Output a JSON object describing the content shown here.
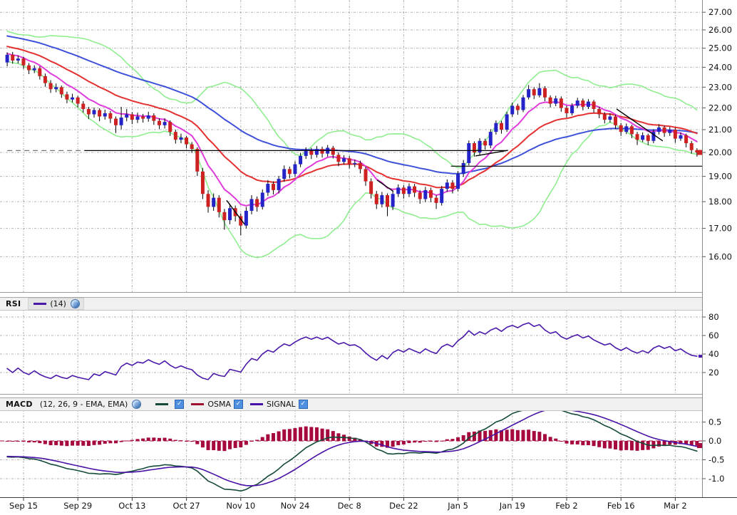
{
  "price_panel": {
    "y_tick_labels": [
      "27.00",
      "26.00",
      "25.00",
      "24.00",
      "23.00",
      "22.00",
      "21.00",
      "20.00",
      "19.00",
      "18.00",
      "17.00",
      "16.00"
    ],
    "x_tick_labels": [
      "Sep 15",
      "Sep 29",
      "Oct 13",
      "Oct 27",
      "Nov 10",
      "Nov 24",
      "Dec 8",
      "Dec 22",
      "Jan 5",
      "Jan 19",
      "Feb 2",
      "Feb 16",
      "Mar 2"
    ]
  },
  "rsi_panel": {
    "title": "RSI",
    "params": "(14)",
    "y_tick_labels": [
      "80",
      "60",
      "40",
      "20"
    ]
  },
  "macd_panel": {
    "title": "MACD",
    "params": "(12, 26, 9 - EMA, EMA)",
    "legend": [
      {
        "label": "",
        "color": "#14493C",
        "checked": "✓"
      },
      {
        "label": "OSMA",
        "color": "#A01030",
        "checked": "✓"
      },
      {
        "label": "SIGNAL",
        "color": "#4911A5",
        "checked": "✓"
      }
    ],
    "y_tick_labels": [
      "0.5",
      "0.0",
      "-0.5",
      "-1.0"
    ]
  },
  "colors": {
    "candle_up": "#2323C8",
    "candle_down": "#CE2121",
    "wick": "#000000",
    "bollinger": "#90EE90",
    "ema_fast": "#E03CDC",
    "ema_mid": "#E43030",
    "ema_slow": "#3F51D9",
    "rsi_line": "#4A18A8",
    "macd_line": "#14493C",
    "signal_line": "#4911A5",
    "osma_hist": "#A5093E",
    "grid": "#b2b2b2",
    "annotation": "#000000",
    "header_bg": "#f0f0f0"
  },
  "chart_data": [
    {
      "type": "candlestick",
      "title": "",
      "yscale": "log",
      "ylim": [
        15.6,
        27.3
      ],
      "yticks": [
        27,
        26,
        25,
        24,
        23,
        22,
        21,
        20,
        19,
        18,
        17,
        16
      ],
      "x_tick_step": 10,
      "first_tick_candle_index": 3,
      "x_tick_labels": [
        "Sep 15",
        "Sep 29",
        "Oct 13",
        "Oct 27",
        "Nov 10",
        "Nov 24",
        "Dec 8",
        "Dec 22",
        "Jan 5",
        "Jan 19",
        "Feb 2",
        "Feb 16",
        "Mar 2"
      ],
      "overlays": [
        {
          "name": "bollinger-bands",
          "period": 20,
          "stddev": 2,
          "color": "#90EE90"
        },
        {
          "name": "ema-fast",
          "period": 8,
          "color": "#E03CDC"
        },
        {
          "name": "ema-mid",
          "period": 20,
          "color": "#E43030"
        },
        {
          "name": "ema-slow",
          "period": 45,
          "color": "#3F51D9"
        }
      ],
      "candles": [
        [
          24.25,
          24.78,
          24.05,
          24.65
        ],
        [
          24.65,
          24.8,
          24.18,
          24.35
        ],
        [
          24.35,
          24.62,
          24.2,
          24.45
        ],
        [
          24.45,
          24.55,
          23.92,
          24.1
        ],
        [
          24.1,
          24.22,
          23.65,
          23.85
        ],
        [
          23.85,
          24.1,
          23.7,
          23.95
        ],
        [
          23.95,
          24.05,
          23.38,
          23.55
        ],
        [
          23.55,
          23.68,
          23.02,
          23.2
        ],
        [
          23.2,
          23.35,
          22.72,
          22.9
        ],
        [
          22.9,
          23.18,
          22.75,
          23.0
        ],
        [
          23.0,
          23.08,
          22.48,
          22.65
        ],
        [
          22.65,
          22.78,
          22.22,
          22.4
        ],
        [
          22.4,
          22.68,
          22.26,
          22.5
        ],
        [
          22.5,
          22.58,
          22.02,
          22.2
        ],
        [
          22.2,
          22.32,
          21.78,
          21.95
        ],
        [
          21.95,
          22.05,
          21.48,
          21.7
        ],
        [
          21.7,
          22.02,
          21.55,
          21.9
        ],
        [
          21.9,
          21.98,
          21.38,
          21.6
        ],
        [
          21.6,
          21.92,
          21.45,
          21.75
        ],
        [
          21.75,
          21.85,
          21.3,
          21.5
        ],
        [
          21.5,
          21.6,
          20.85,
          21.2
        ],
        [
          21.2,
          22.05,
          21.02,
          21.55
        ],
        [
          21.55,
          21.95,
          21.38,
          21.7
        ],
        [
          21.7,
          21.8,
          21.25,
          21.45
        ],
        [
          21.45,
          21.78,
          21.3,
          21.6
        ],
        [
          21.6,
          21.72,
          21.32,
          21.5
        ],
        [
          21.5,
          21.82,
          21.36,
          21.65
        ],
        [
          21.65,
          21.75,
          21.22,
          21.4
        ],
        [
          21.4,
          21.52,
          21.02,
          21.2
        ],
        [
          21.2,
          21.52,
          21.05,
          21.35
        ],
        [
          21.35,
          21.42,
          20.72,
          20.9
        ],
        [
          20.9,
          21.0,
          20.38,
          20.55
        ],
        [
          20.55,
          20.82,
          20.4,
          20.65
        ],
        [
          20.65,
          20.72,
          20.18,
          20.35
        ],
        [
          20.35,
          20.45,
          19.98,
          20.15
        ],
        [
          20.15,
          20.22,
          19.02,
          19.2
        ],
        [
          19.2,
          19.35,
          18.1,
          18.3
        ],
        [
          18.3,
          18.45,
          17.58,
          17.8
        ],
        [
          17.8,
          18.32,
          17.65,
          18.15
        ],
        [
          18.15,
          18.25,
          17.4,
          17.6
        ],
        [
          17.6,
          17.72,
          16.95,
          17.3
        ],
        [
          17.3,
          17.92,
          17.15,
          17.75
        ],
        [
          17.75,
          17.85,
          17.25,
          17.45
        ],
        [
          17.45,
          17.55,
          16.75,
          17.1
        ],
        [
          17.1,
          17.8,
          17.0,
          17.65
        ],
        [
          17.65,
          18.25,
          17.52,
          18.1
        ],
        [
          18.1,
          18.2,
          17.62,
          17.8
        ],
        [
          17.8,
          18.48,
          17.7,
          18.35
        ],
        [
          18.35,
          18.85,
          18.22,
          18.7
        ],
        [
          18.7,
          18.8,
          18.28,
          18.45
        ],
        [
          18.45,
          19.02,
          18.32,
          18.9
        ],
        [
          18.9,
          19.45,
          18.78,
          19.3
        ],
        [
          19.3,
          19.4,
          18.92,
          19.1
        ],
        [
          19.1,
          19.62,
          18.98,
          19.5
        ],
        [
          19.5,
          19.98,
          19.38,
          19.85
        ],
        [
          19.85,
          20.22,
          19.72,
          20.1
        ],
        [
          20.1,
          20.2,
          19.72,
          19.9
        ],
        [
          19.9,
          20.28,
          19.78,
          20.15
        ],
        [
          20.15,
          20.25,
          19.78,
          19.95
        ],
        [
          19.95,
          20.32,
          19.82,
          20.2
        ],
        [
          20.2,
          20.28,
          19.74,
          19.9
        ],
        [
          19.9,
          20.0,
          19.42,
          19.6
        ],
        [
          19.6,
          19.88,
          19.48,
          19.75
        ],
        [
          19.75,
          19.85,
          19.32,
          19.5
        ],
        [
          19.5,
          19.7,
          19.38,
          19.55
        ],
        [
          19.55,
          19.65,
          19.12,
          19.3
        ],
        [
          19.3,
          19.4,
          18.62,
          18.8
        ],
        [
          18.8,
          18.92,
          18.12,
          18.3
        ],
        [
          18.3,
          18.42,
          17.72,
          17.9
        ],
        [
          17.9,
          18.38,
          17.78,
          18.25
        ],
        [
          18.25,
          18.32,
          17.45,
          17.8
        ],
        [
          17.8,
          18.42,
          17.68,
          18.3
        ],
        [
          18.3,
          18.68,
          18.18,
          18.55
        ],
        [
          18.55,
          18.65,
          18.12,
          18.3
        ],
        [
          18.3,
          18.72,
          18.18,
          18.6
        ],
        [
          18.6,
          18.7,
          18.18,
          18.35
        ],
        [
          18.35,
          18.45,
          17.92,
          18.1
        ],
        [
          18.1,
          18.58,
          17.98,
          18.45
        ],
        [
          18.45,
          18.55,
          17.98,
          18.15
        ],
        [
          18.15,
          18.25,
          17.72,
          17.95
        ],
        [
          17.95,
          18.62,
          17.85,
          18.5
        ],
        [
          18.5,
          18.88,
          18.38,
          18.75
        ],
        [
          18.75,
          18.85,
          18.32,
          18.5
        ],
        [
          18.5,
          19.22,
          18.4,
          19.1
        ],
        [
          19.1,
          19.68,
          18.98,
          19.55
        ],
        [
          19.55,
          20.52,
          19.45,
          20.4
        ],
        [
          20.4,
          20.48,
          19.82,
          20.0
        ],
        [
          20.0,
          20.62,
          19.9,
          20.5
        ],
        [
          20.5,
          20.6,
          20.12,
          20.3
        ],
        [
          20.3,
          21.02,
          20.18,
          20.9
        ],
        [
          20.9,
          21.42,
          20.78,
          21.3
        ],
        [
          21.3,
          21.4,
          20.82,
          21.0
        ],
        [
          21.0,
          21.82,
          20.9,
          21.7
        ],
        [
          21.7,
          22.25,
          21.58,
          22.1
        ],
        [
          22.1,
          22.2,
          21.68,
          21.9
        ],
        [
          21.9,
          22.62,
          21.8,
          22.5
        ],
        [
          22.5,
          23.1,
          22.4,
          22.9
        ],
        [
          22.9,
          23.0,
          22.42,
          22.6
        ],
        [
          22.6,
          23.2,
          22.5,
          22.95
        ],
        [
          22.95,
          23.05,
          22.32,
          22.5
        ],
        [
          22.5,
          22.6,
          22.02,
          22.2
        ],
        [
          22.2,
          22.58,
          22.08,
          22.45
        ],
        [
          22.45,
          22.55,
          21.82,
          22.0
        ],
        [
          22.0,
          22.1,
          21.55,
          21.75
        ],
        [
          21.75,
          22.22,
          21.65,
          22.1
        ],
        [
          22.1,
          22.48,
          22.0,
          22.35
        ],
        [
          22.35,
          22.45,
          21.88,
          22.05
        ],
        [
          22.05,
          22.42,
          21.95,
          22.3
        ],
        [
          22.3,
          22.38,
          21.78,
          21.95
        ],
        [
          21.95,
          22.05,
          21.52,
          21.7
        ],
        [
          21.7,
          21.8,
          21.28,
          21.45
        ],
        [
          21.45,
          21.75,
          21.32,
          21.6
        ],
        [
          21.6,
          21.68,
          21.02,
          21.2
        ],
        [
          21.2,
          21.3,
          20.72,
          20.9
        ],
        [
          20.9,
          21.28,
          20.8,
          21.15
        ],
        [
          21.15,
          21.22,
          20.62,
          20.8
        ],
        [
          20.8,
          20.9,
          20.32,
          20.55
        ],
        [
          20.55,
          20.88,
          20.45,
          20.75
        ],
        [
          20.75,
          20.82,
          20.32,
          20.5
        ],
        [
          20.5,
          21.02,
          20.4,
          20.9
        ],
        [
          20.9,
          21.25,
          20.78,
          21.1
        ],
        [
          21.1,
          21.18,
          20.68,
          20.85
        ],
        [
          20.85,
          21.12,
          20.72,
          21.0
        ],
        [
          21.0,
          21.08,
          20.42,
          20.6
        ],
        [
          20.6,
          20.88,
          20.5,
          20.75
        ],
        [
          20.75,
          20.82,
          20.22,
          20.4
        ],
        [
          20.4,
          20.5,
          19.95,
          20.1
        ],
        [
          20.1,
          20.18,
          19.82,
          20.0
        ]
      ],
      "annotations": {
        "hlines": [
          {
            "price": 20.08,
            "i1": 0.0,
            "i2": 14.2,
            "style": "dashed"
          },
          {
            "price": 20.08,
            "i1": 14.2,
            "i2": 92.1,
            "style": "solid"
          },
          {
            "price": 19.42,
            "i1": 81.7,
            "i2": 128.0,
            "style": "solid"
          }
        ],
        "trendlines": [
          {
            "i1": 40.4,
            "p1": 18.05,
            "i2": 43.7,
            "p2": 17.15
          },
          {
            "i1": 68.1,
            "p1": 18.85,
            "i2": 71.1,
            "p2": 18.4
          },
          {
            "i1": 86.2,
            "p1": 19.85,
            "i2": 92.2,
            "p2": 20.09
          },
          {
            "i1": 112.2,
            "p1": 21.95,
            "i2": 120.7,
            "p2": 20.5
          }
        ]
      }
    },
    {
      "type": "line",
      "name": "RSI",
      "period": 14,
      "ylim": [
        8,
        88
      ],
      "yticks": [
        20,
        40,
        60,
        80
      ],
      "line_color": "#4A18A8",
      "source": "derived from candles[] closes"
    },
    {
      "type": "line+bar",
      "name": "MACD",
      "fast": 12,
      "slow": 26,
      "signal": 9,
      "ylim": [
        -1.45,
        0.85
      ],
      "yticks": [
        0.5,
        0.0,
        -0.5,
        -1.0
      ],
      "macd_color": "#14493C",
      "signal_color": "#4911A5",
      "osma_color": "#A5093E",
      "source": "derived from candles[] closes"
    }
  ]
}
